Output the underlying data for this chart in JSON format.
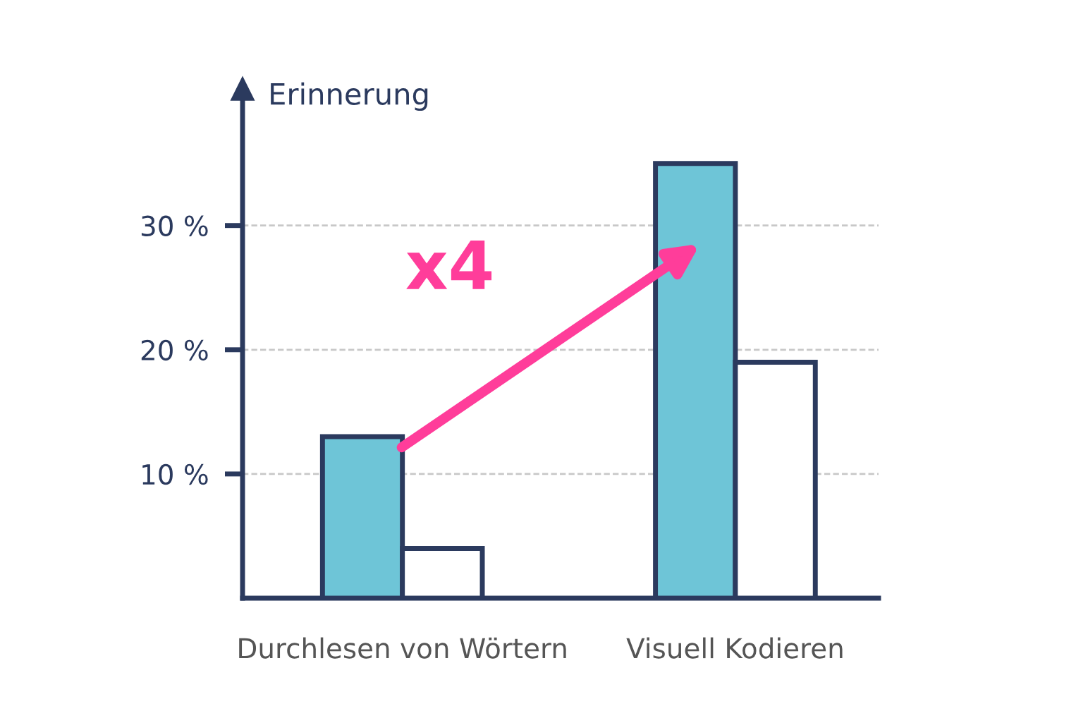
{
  "chart_data": {
    "type": "bar",
    "ylabel": "Erinnerung",
    "categories": [
      "Durchlesen von Wörtern",
      "Visuell Kodieren"
    ],
    "series": [
      {
        "color": "#6ec5d7",
        "values": [
          13,
          35
        ]
      },
      {
        "color": "#ffffff",
        "values": [
          4,
          19
        ]
      }
    ],
    "ylim": [
      0,
      41
    ],
    "yticks": [
      {
        "value": 10,
        "label": "10 %"
      },
      {
        "value": 20,
        "label": "20 %"
      },
      {
        "value": 30,
        "label": "30 %"
      }
    ],
    "grid": "y",
    "annotations": [
      "x4"
    ]
  }
}
